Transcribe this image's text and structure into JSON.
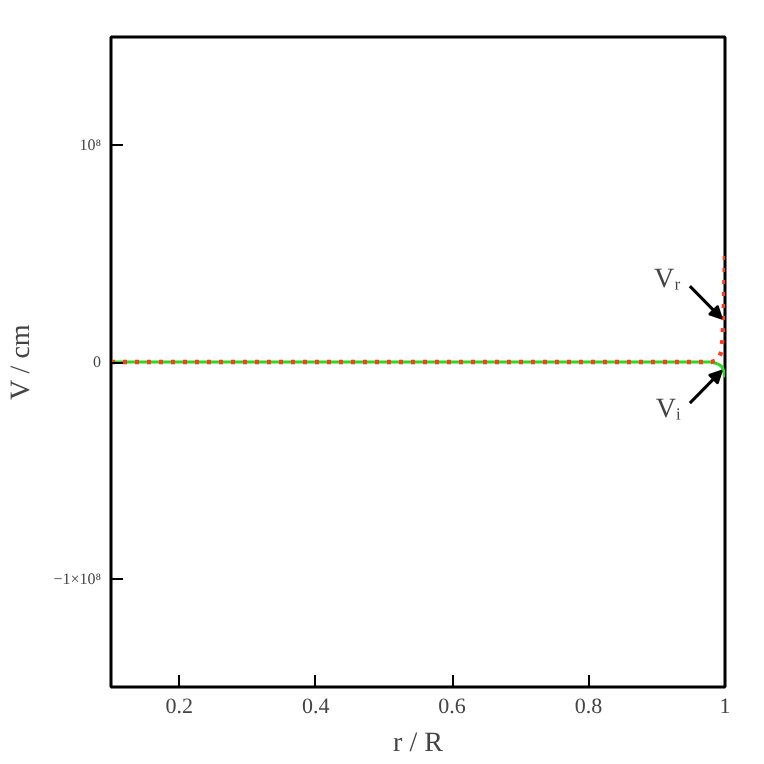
{
  "chart_data": {
    "type": "line",
    "xlabel": "r / R",
    "ylabel": "V / cm",
    "xlim": [
      0.1,
      1
    ],
    "ylim": [
      -150000000,
      150000000
    ],
    "xticks": [
      0.2,
      0.4,
      0.6,
      0.8,
      {
        "value": 1,
        "label": "1"
      }
    ],
    "yticks": [
      {
        "value": -100000000,
        "label": "−1×10⁸"
      },
      0,
      {
        "value": 100000000,
        "label": "10⁸"
      }
    ],
    "grid": false,
    "series": [
      {
        "color": "#22dd22",
        "line_style": "solid",
        "x": [
          0.1,
          0.2,
          0.3,
          0.4,
          0.5,
          0.6,
          0.7,
          0.8,
          0.9,
          0.95,
          0.98,
          0.99,
          0.995,
          0.998,
          1.0
        ],
        "values": [
          0,
          0,
          0,
          0,
          0,
          0,
          0,
          0,
          0,
          0,
          0,
          -1000000,
          -2000000,
          -4000000,
          -7000000
        ]
      },
      {
        "color": "#ff3b1f",
        "line_style": "dotted",
        "x": [
          0.1,
          0.2,
          0.3,
          0.4,
          0.5,
          0.6,
          0.7,
          0.8,
          0.9,
          0.95,
          0.98,
          0.99,
          0.995,
          0.998,
          1.0
        ],
        "values": [
          0,
          0,
          0,
          0,
          0,
          0,
          0,
          0,
          0,
          0,
          0,
          1000000,
          5000000,
          20000000,
          50000000
        ]
      }
    ],
    "annotations": [
      {
        "text": "Vᵣ",
        "x": 0.998,
        "y": 20000000
      },
      {
        "text": "Vᵢ",
        "x": 0.998,
        "y": -4000000
      }
    ]
  }
}
